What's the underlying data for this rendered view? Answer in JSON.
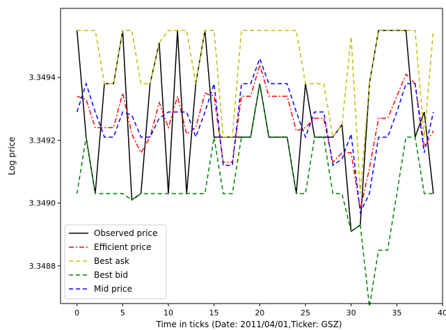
{
  "chart_data": {
    "type": "line",
    "title": "",
    "xlabel": "Time in ticks (Date: 2011/04/01,Ticker: GSZ)",
    "ylabel": "Log price",
    "xlim": [
      -1.8,
      40
    ],
    "ylim": [
      3.34868,
      3.34962
    ],
    "x_ticks": [
      0,
      5,
      10,
      15,
      20,
      25,
      30,
      35,
      40
    ],
    "x_tick_labels": [
      "0",
      "5",
      "10",
      "15",
      "20",
      "25",
      "30",
      "35",
      "40"
    ],
    "y_ticks": [
      3.3488,
      3.349,
      3.3492,
      3.3494
    ],
    "y_tick_labels": [
      "3.3488",
      "3.3490",
      "3.3492",
      "3.3494"
    ],
    "grid": false,
    "legend_position": "lower-left",
    "x": [
      0,
      1,
      2,
      3,
      4,
      5,
      6,
      7,
      8,
      9,
      10,
      11,
      12,
      13,
      14,
      15,
      16,
      17,
      18,
      19,
      20,
      21,
      22,
      23,
      24,
      25,
      26,
      27,
      28,
      29,
      30,
      31,
      32,
      33,
      34,
      35,
      36,
      37,
      38,
      39
    ],
    "series": [
      {
        "name": "Observed price",
        "color": "#000000",
        "dash": "solid",
        "values": [
          3.34955,
          3.34921,
          3.34903,
          3.34938,
          3.34938,
          3.34955,
          3.34901,
          3.34903,
          3.34938,
          3.34951,
          3.34903,
          3.34955,
          3.34903,
          3.34938,
          3.34955,
          3.34921,
          3.34921,
          3.34921,
          3.34921,
          3.34921,
          3.34938,
          3.34921,
          3.34921,
          3.34921,
          3.34903,
          3.34938,
          3.34921,
          3.34921,
          3.34921,
          3.34925,
          3.34891,
          3.34893,
          3.34938,
          3.34955,
          3.34955,
          3.34955,
          3.34955,
          3.34921,
          3.34929,
          3.34903
        ]
      },
      {
        "name": "Efficient price",
        "color": "#ff0000",
        "dash": "dashdot",
        "values": [
          3.34934,
          3.34933,
          3.34924,
          3.34924,
          3.34924,
          3.34935,
          3.34922,
          3.34916,
          3.34921,
          3.34932,
          3.34924,
          3.34934,
          3.34922,
          3.34924,
          3.34935,
          3.34934,
          3.34913,
          3.34913,
          3.34934,
          3.34934,
          3.34944,
          3.34934,
          3.34934,
          3.34934,
          3.34923,
          3.34924,
          3.34927,
          3.34927,
          3.34913,
          3.34916,
          3.34916,
          3.34898,
          3.34911,
          3.34927,
          3.34927,
          3.34934,
          3.34941,
          3.34938,
          3.34918,
          3.34923
        ]
      },
      {
        "name": "Best ask",
        "color": "#bfbf00",
        "dash": "dashed",
        "values": [
          3.34955,
          3.34955,
          3.34955,
          3.34938,
          3.34938,
          3.34955,
          3.34955,
          3.34938,
          3.34938,
          3.34951,
          3.34955,
          3.34955,
          3.34955,
          3.34938,
          3.34955,
          3.34955,
          3.34921,
          3.34921,
          3.34955,
          3.34955,
          3.34955,
          3.34955,
          3.34955,
          3.34955,
          3.34955,
          3.34938,
          3.34938,
          3.34938,
          3.34921,
          3.34925,
          3.34953,
          3.34903,
          3.34938,
          3.34955,
          3.34955,
          3.34955,
          3.34955,
          3.34955,
          3.34921,
          3.34955
        ]
      },
      {
        "name": "Best bid",
        "color": "#007f00",
        "dash": "dashed",
        "values": [
          3.34903,
          3.34921,
          3.34903,
          3.34903,
          3.34903,
          3.34903,
          3.34901,
          3.34903,
          3.34903,
          3.34903,
          3.34903,
          3.34903,
          3.34903,
          3.34903,
          3.34903,
          3.34921,
          3.34903,
          3.34903,
          3.34921,
          3.34921,
          3.34938,
          3.34921,
          3.34921,
          3.34921,
          3.34903,
          3.34903,
          3.34921,
          3.34921,
          3.34903,
          3.34903,
          3.34891,
          3.34893,
          3.34867,
          3.34885,
          3.34885,
          3.34903,
          3.34921,
          3.34921,
          3.34903,
          3.34903
        ]
      },
      {
        "name": "Mid price",
        "color": "#0000ff",
        "dash": "dashed",
        "values": [
          3.34929,
          3.34938,
          3.34929,
          3.34921,
          3.34921,
          3.34929,
          3.34928,
          3.34921,
          3.34921,
          3.34927,
          3.34929,
          3.34929,
          3.34929,
          3.34921,
          3.34929,
          3.34938,
          3.34912,
          3.34912,
          3.34938,
          3.34938,
          3.34946,
          3.34938,
          3.34938,
          3.34938,
          3.34929,
          3.34921,
          3.34929,
          3.34929,
          3.34912,
          3.34914,
          3.34922,
          3.34897,
          3.34903,
          3.34921,
          3.34921,
          3.34929,
          3.34938,
          3.34938,
          3.34916,
          3.34929
        ]
      }
    ]
  }
}
